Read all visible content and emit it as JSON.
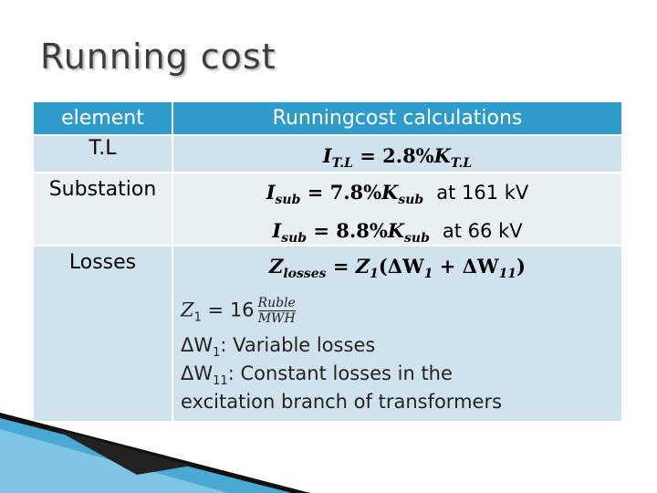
{
  "header": {
    "title": "Running cost"
  },
  "table": {
    "columns": [
      "element",
      "Runningcost calculations"
    ],
    "rows": [
      {
        "element": "T.L",
        "formulas": [
          [
            "I",
            "T.L",
            " = 2.8%",
            "K",
            "T.L"
          ]
        ]
      },
      {
        "element": "Substation",
        "formulas": [
          [
            "I",
            "sub",
            " = 7.8%",
            "K",
            "sub",
            "at 161 kV"
          ],
          [
            "I",
            "sub",
            " = 8.8%",
            "K",
            "sub",
            "at 66 kV"
          ]
        ]
      },
      {
        "element": "Losses",
        "formulas": [
          [
            "Z",
            "losses",
            " = ",
            "Z",
            "1",
            "(ΔW",
            "1",
            " + ΔW",
            "11",
            ")"
          ]
        ],
        "notes": {
          "z1": [
            "Z",
            "1",
            " = 16",
            "Ruble",
            "MWH"
          ],
          "lines": [
            [
              "ΔW",
              "1",
              ": Variable losses"
            ],
            [
              "ΔW",
              "11",
              ": Constant losses in the"
            ],
            [
              "excitation branch of transformers"
            ]
          ]
        }
      }
    ]
  }
}
